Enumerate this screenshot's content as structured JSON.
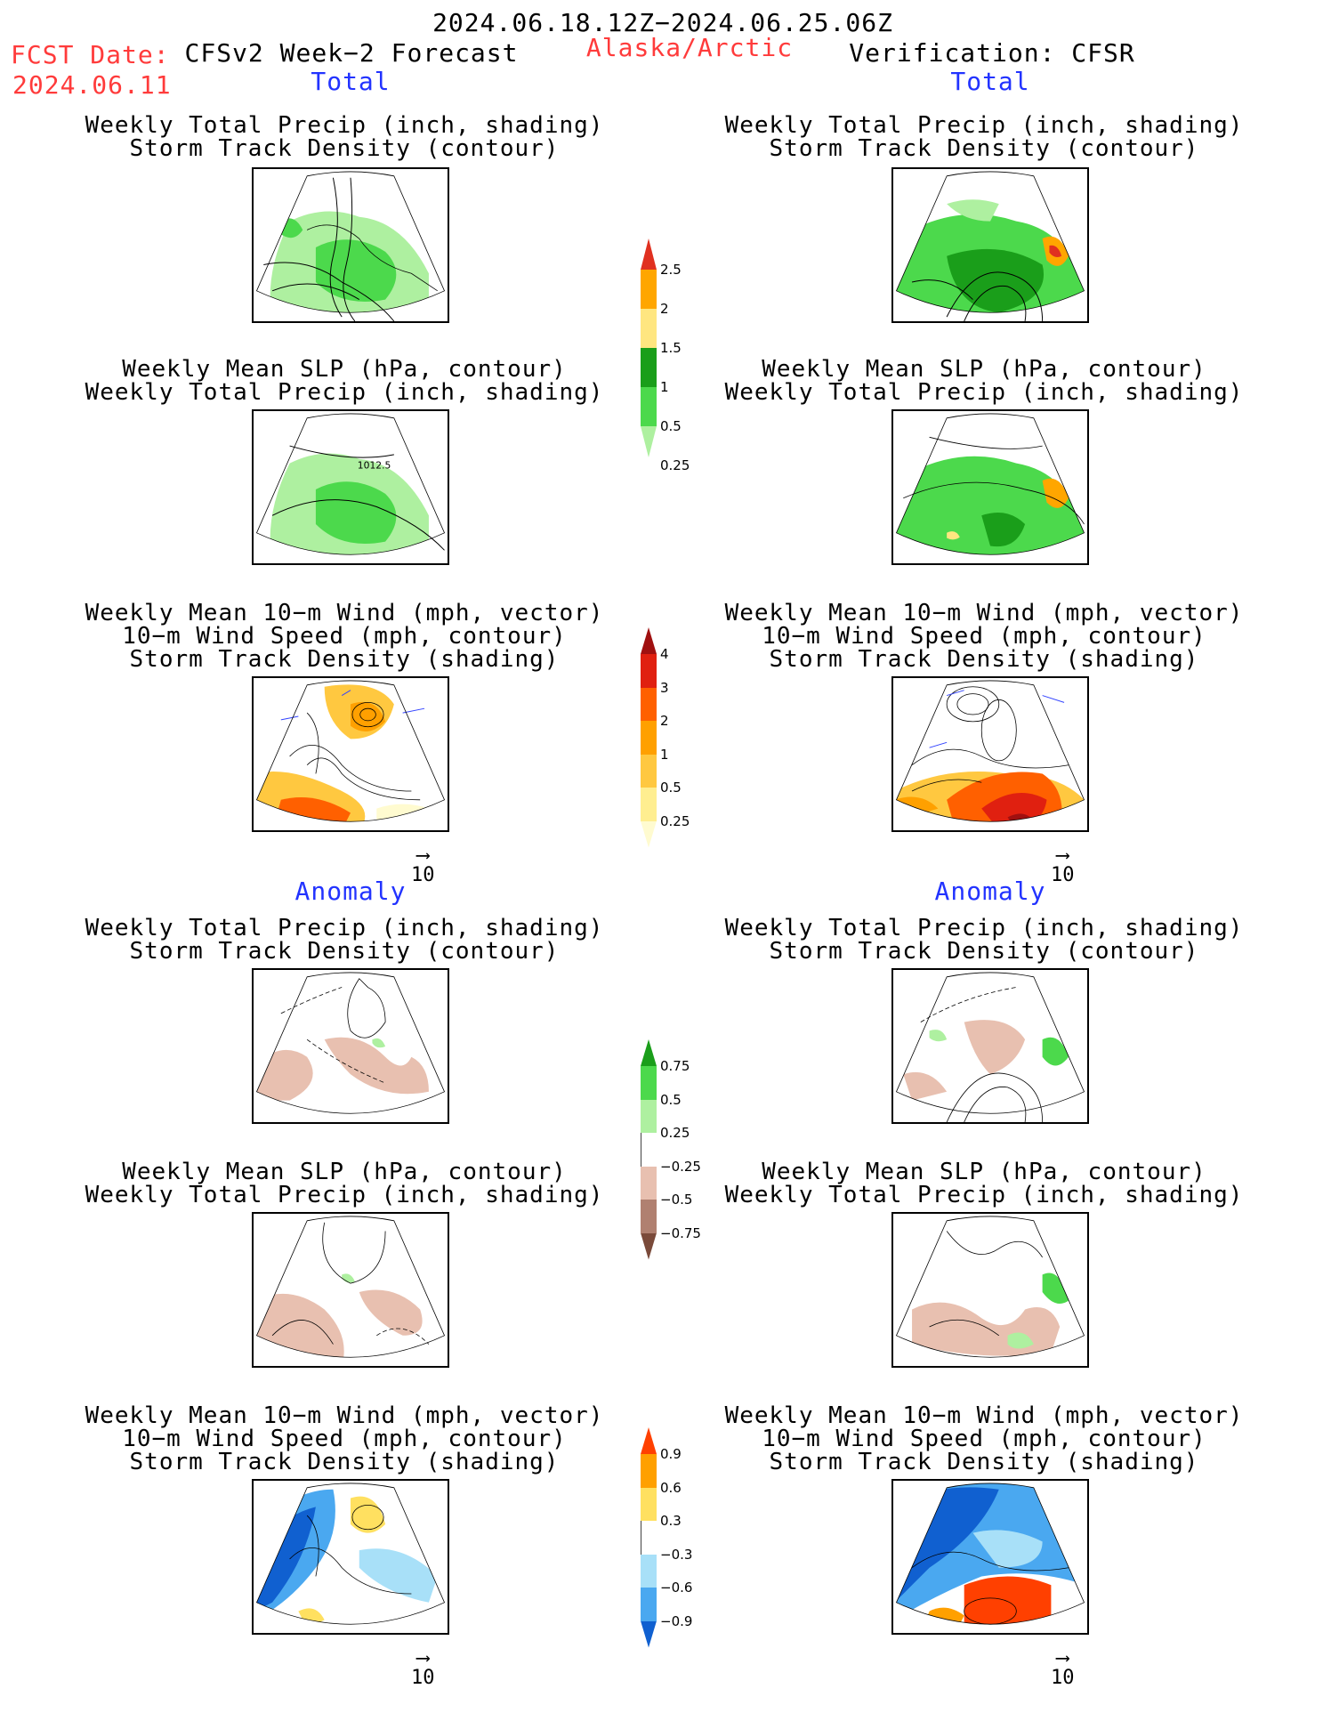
{
  "header": {
    "date_range": "2024.06.18.12Z−2024.06.25.06Z",
    "fcst_label": "FCST Date:",
    "fcst_date": "2024.06.11",
    "model": "CFSv2 Week−2 Forecast",
    "region": "Alaska/Arctic",
    "verification": "Verification: CFSR"
  },
  "sections": {
    "total": "Total",
    "anomaly": "Anomaly"
  },
  "titles": {
    "precip_storm": [
      "Weekly Total Precip (inch, shading)",
      "Storm Track Density (contour)"
    ],
    "slp_precip": [
      "Weekly Mean SLP (hPa, contour)",
      "Weekly Total Precip (inch, shading)"
    ],
    "wind_storm": [
      "Weekly Mean 10−m Wind (mph, vector)",
      "10−m Wind Speed (mph, contour)",
      "Storm Track Density (shading)"
    ]
  },
  "vector_scale": "10",
  "contour_label": "1012.5",
  "colorbars": {
    "total_precip": {
      "labels": [
        "2.5",
        "2",
        "1.5",
        "1",
        "0.5",
        "0.25"
      ],
      "colors": [
        "#e03020",
        "#ffa600",
        "#ffe680",
        "#1a9e1a",
        "#4cd94c",
        "#aef0a0"
      ]
    },
    "total_storm": {
      "labels": [
        "4",
        "3",
        "2",
        "1",
        "0.5",
        "0.25"
      ],
      "colors": [
        "#a01010",
        "#e02010",
        "#ff6000",
        "#ffa000",
        "#ffc840",
        "#ffee90",
        "#fffbd0"
      ]
    },
    "anom_precip": {
      "labels": [
        "0.75",
        "0.5",
        "0.25",
        "−0.25",
        "−0.5",
        "−0.75"
      ],
      "colors": [
        "#1a9e1a",
        "#4cd94c",
        "#aef0a0",
        "#ffffff",
        "#e8c0b0",
        "#b08070",
        "#7a4a3a"
      ]
    },
    "anom_storm": {
      "labels": [
        "0.9",
        "0.6",
        "0.3",
        "−0.3",
        "−0.6",
        "−0.9"
      ],
      "colors": [
        "#ff4000",
        "#ffa000",
        "#ffe060",
        "#ffffff",
        "#a8e0f8",
        "#4aa8f0",
        "#1060d0"
      ]
    }
  }
}
